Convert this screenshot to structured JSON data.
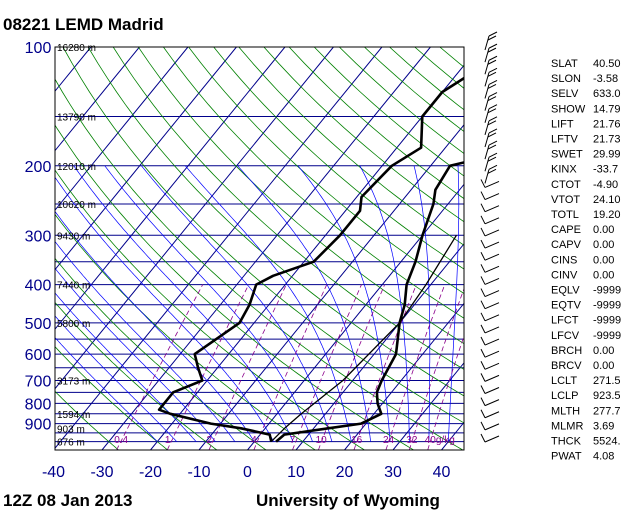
{
  "header": {
    "title": "08221 LEMD Madrid"
  },
  "footer": {
    "left": "12Z 08 Jan 2013",
    "right": "University of Wyoming"
  },
  "chart_data": {
    "type": "line",
    "title": "08221 LEMD Madrid",
    "pressure_ticks": [
      100,
      200,
      300,
      400,
      500,
      600,
      700,
      800,
      900
    ],
    "pressure_labels": [
      "100",
      "200",
      "300",
      "400",
      "500",
      "600",
      "700",
      "800",
      "900"
    ],
    "temperature_ticks": [
      -40,
      -30,
      -20,
      -10,
      0,
      10,
      20,
      30,
      40
    ],
    "temperature_labels": [
      "-40",
      "-30",
      "-20",
      "-10",
      "0",
      "10",
      "20",
      "30",
      "40"
    ],
    "ylim": [
      100,
      1050
    ],
    "xlim": [
      -40,
      45
    ],
    "height_labels": [
      {
        "p": 100,
        "text": "16280 m"
      },
      {
        "p": 150,
        "text": "13790 m"
      },
      {
        "p": 200,
        "text": "12010 m"
      },
      {
        "p": 250,
        "text": "10620 m"
      },
      {
        "p": 300,
        "text": "9430 m"
      },
      {
        "p": 400,
        "text": "7440 m"
      },
      {
        "p": 500,
        "text": "5800 m"
      },
      {
        "p": 700,
        "text": "3173 m"
      },
      {
        "p": 850,
        "text": "1594 m"
      },
      {
        "p": 925,
        "text": "903 m"
      },
      {
        "p": 1000,
        "text": "676 m"
      }
    ],
    "mixing_ratio_labels": [
      "0.4",
      "1",
      "2",
      "4",
      "7",
      "10",
      "16",
      "24",
      "32",
      "40g/kg"
    ],
    "mixing_ratio_values": [
      0.4,
      1,
      2,
      4,
      7,
      10,
      16,
      24,
      32,
      40
    ],
    "series": [
      {
        "color": "#000000",
        "points": [
          {
            "p": 100,
            "x": -13.0
          },
          {
            "p": 130,
            "x": -20.0
          },
          {
            "p": 150,
            "x": -20.0
          },
          {
            "p": 180,
            "x": -15.0
          },
          {
            "p": 200,
            "x": -18.0
          },
          {
            "p": 240,
            "x": -19.0
          },
          {
            "p": 260,
            "x": -17.0
          },
          {
            "p": 300,
            "x": -17.0
          },
          {
            "p": 350,
            "x": -18.0
          },
          {
            "p": 380,
            "x": -24.0
          },
          {
            "p": 400,
            "x": -26.0
          },
          {
            "p": 450,
            "x": -24.0
          },
          {
            "p": 500,
            "x": -23.0
          },
          {
            "p": 600,
            "x": -27.0
          },
          {
            "p": 650,
            "x": -24.0
          },
          {
            "p": 700,
            "x": -21.0
          },
          {
            "p": 750,
            "x": -25.0
          },
          {
            "p": 830,
            "x": -25.0
          },
          {
            "p": 850,
            "x": -22.0
          },
          {
            "p": 900,
            "x": -12.0
          },
          {
            "p": 925,
            "x": -5.0
          },
          {
            "p": 960,
            "x": 2.0
          },
          {
            "p": 1000,
            "x": 3.5
          }
        ]
      },
      {
        "color": "#000000",
        "points": [
          {
            "p": 100,
            "x": 18.0
          },
          {
            "p": 130,
            "x": 14.0
          },
          {
            "p": 160,
            "x": 10.0
          },
          {
            "p": 190,
            "x": 0.0
          },
          {
            "p": 200,
            "x": -6.0
          },
          {
            "p": 230,
            "x": -5.0
          },
          {
            "p": 250,
            "x": -3.0
          },
          {
            "p": 300,
            "x": 0.0
          },
          {
            "p": 350,
            "x": 3.0
          },
          {
            "p": 400,
            "x": 5.0
          },
          {
            "p": 450,
            "x": 8.0
          },
          {
            "p": 500,
            "x": 10.0
          },
          {
            "p": 600,
            "x": 14.5
          },
          {
            "p": 700,
            "x": 16.0
          },
          {
            "p": 750,
            "x": 17.0
          },
          {
            "p": 800,
            "x": 19.0
          },
          {
            "p": 850,
            "x": 21.5
          },
          {
            "p": 900,
            "x": 19.0
          },
          {
            "p": 925,
            "x": 13.0
          },
          {
            "p": 960,
            "x": 5.0
          },
          {
            "p": 1000,
            "x": 4.5
          }
        ]
      },
      {
        "color": "#000000",
        "points": [
          {
            "p": 1000,
            "x": 3.5
          },
          {
            "p": 925,
            "x": 4.0
          },
          {
            "p": 850,
            "x": 5.0
          },
          {
            "p": 700,
            "x": 8.0
          },
          {
            "p": 500,
            "x": 10.0
          },
          {
            "p": 400,
            "x": 9.0
          },
          {
            "p": 300,
            "x": 7.0
          }
        ]
      }
    ],
    "wind_barbs_count": 34,
    "stability_indices": [
      {
        "label": "SLAT",
        "value": "40.50"
      },
      {
        "label": "SLON",
        "value": "-3.58"
      },
      {
        "label": "SELV",
        "value": "633.0"
      },
      {
        "label": "SHOW",
        "value": "14.79"
      },
      {
        "label": "LIFT",
        "value": "21.76"
      },
      {
        "label": "LFTV",
        "value": "21.73"
      },
      {
        "label": "SWET",
        "value": "29.99"
      },
      {
        "label": "KINX",
        "value": "-33.7"
      },
      {
        "label": "CTOT",
        "value": "-4.90"
      },
      {
        "label": "VTOT",
        "value": "24.10"
      },
      {
        "label": "TOTL",
        "value": "19.20"
      },
      {
        "label": "CAPE",
        "value": "0.00"
      },
      {
        "label": "CAPV",
        "value": "0.00"
      },
      {
        "label": "CINS",
        "value": "0.00"
      },
      {
        "label": "CINV",
        "value": "0.00"
      },
      {
        "label": "EQLV",
        "value": "-9999"
      },
      {
        "label": "EQTV",
        "value": "-9999"
      },
      {
        "label": "LFCT",
        "value": "-9999"
      },
      {
        "label": "LFCV",
        "value": "-9999"
      },
      {
        "label": "BRCH",
        "value": "0.00"
      },
      {
        "label": "BRCV",
        "value": "0.00"
      },
      {
        "label": "LCLT",
        "value": "271.5"
      },
      {
        "label": "LCLP",
        "value": "923.5"
      },
      {
        "label": "MLTH",
        "value": "277.7"
      },
      {
        "label": "MLMR",
        "value": "3.69"
      },
      {
        "label": "THCK",
        "value": "5524."
      },
      {
        "label": "PWAT",
        "value": "4.08"
      }
    ],
    "colors": {
      "isobar": "#00008b",
      "isotherm": "#00008b",
      "dry_adiabat": "#008000",
      "moist_adiabat": "#0000ff",
      "mixing_ratio": "#8b008b",
      "profile": "#000000",
      "axis_labels": "#00008b"
    }
  }
}
